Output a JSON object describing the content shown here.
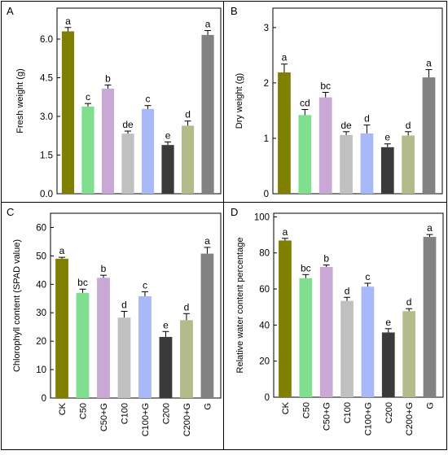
{
  "categories": [
    "CK",
    "C50",
    "C50+G",
    "C100",
    "C100+G",
    "C200",
    "C200+G",
    "G"
  ],
  "colors": [
    "#808000",
    "#7fdf8f",
    "#c9a8d6",
    "#c0c0c0",
    "#a9b8f7",
    "#3a3a3a",
    "#b3bb8a",
    "#828282"
  ],
  "chart_data": [
    {
      "type": "bar",
      "panel": "A",
      "ylabel": "Fresh weight (g)",
      "ylim": [
        0,
        7.2
      ],
      "yticks": [
        "0.0",
        "1.5",
        "3.0",
        "4.5",
        "6.0"
      ],
      "ytick_values": [
        0,
        1.5,
        3.0,
        4.5,
        6.0
      ],
      "show_categories": false,
      "values": [
        6.3,
        3.38,
        4.08,
        2.33,
        3.29,
        1.89,
        2.64,
        6.16
      ],
      "errors": [
        0.15,
        0.12,
        0.14,
        0.1,
        0.13,
        0.12,
        0.18,
        0.17
      ],
      "letters": [
        "a",
        "c",
        "b",
        "de",
        "c",
        "e",
        "d",
        "a"
      ]
    },
    {
      "type": "bar",
      "panel": "B",
      "ylabel": "Dry weight (g)",
      "ylim": [
        0,
        3.35
      ],
      "yticks": [
        "0",
        "1",
        "2",
        "3"
      ],
      "ytick_values": [
        0,
        1,
        2,
        3
      ],
      "show_categories": false,
      "values": [
        2.19,
        1.42,
        1.74,
        1.06,
        1.09,
        0.84,
        1.05,
        2.1
      ],
      "errors": [
        0.15,
        0.1,
        0.09,
        0.06,
        0.15,
        0.06,
        0.07,
        0.14
      ],
      "letters": [
        "a",
        "cd",
        "bc",
        "de",
        "d",
        "e",
        "d",
        "a"
      ]
    },
    {
      "type": "bar",
      "panel": "C",
      "ylabel": "Chlorophyll content (SPAD value)",
      "ylim": [
        0,
        65
      ],
      "yticks": [
        "0",
        "10",
        "20",
        "30",
        "40",
        "50",
        "60"
      ],
      "ytick_values": [
        0,
        10,
        20,
        30,
        40,
        50,
        60
      ],
      "show_categories": true,
      "values": [
        49.0,
        37.0,
        42.3,
        28.3,
        35.8,
        21.5,
        27.4,
        50.8
      ],
      "errors": [
        0.5,
        1.3,
        0.9,
        2.2,
        1.6,
        1.9,
        2.3,
        2.2
      ],
      "letters": [
        "a",
        "bc",
        "b",
        "d",
        "c",
        "e",
        "d",
        "a"
      ]
    },
    {
      "type": "bar",
      "panel": "D",
      "ylabel": "Relative water content percentage",
      "ylim": [
        0,
        102
      ],
      "yticks": [
        "0",
        "20",
        "40",
        "60",
        "80",
        "100"
      ],
      "ytick_values": [
        0,
        20,
        40,
        60,
        80,
        100
      ],
      "show_categories": true,
      "values": [
        86.9,
        66.0,
        72.2,
        53.4,
        61.3,
        35.9,
        47.7,
        88.9
      ],
      "errors": [
        1.2,
        2.0,
        1.1,
        2.0,
        1.9,
        2.1,
        1.4,
        1.3
      ],
      "letters": [
        "a",
        "bc",
        "b",
        "d",
        "c",
        "e",
        "d",
        "a"
      ]
    }
  ]
}
